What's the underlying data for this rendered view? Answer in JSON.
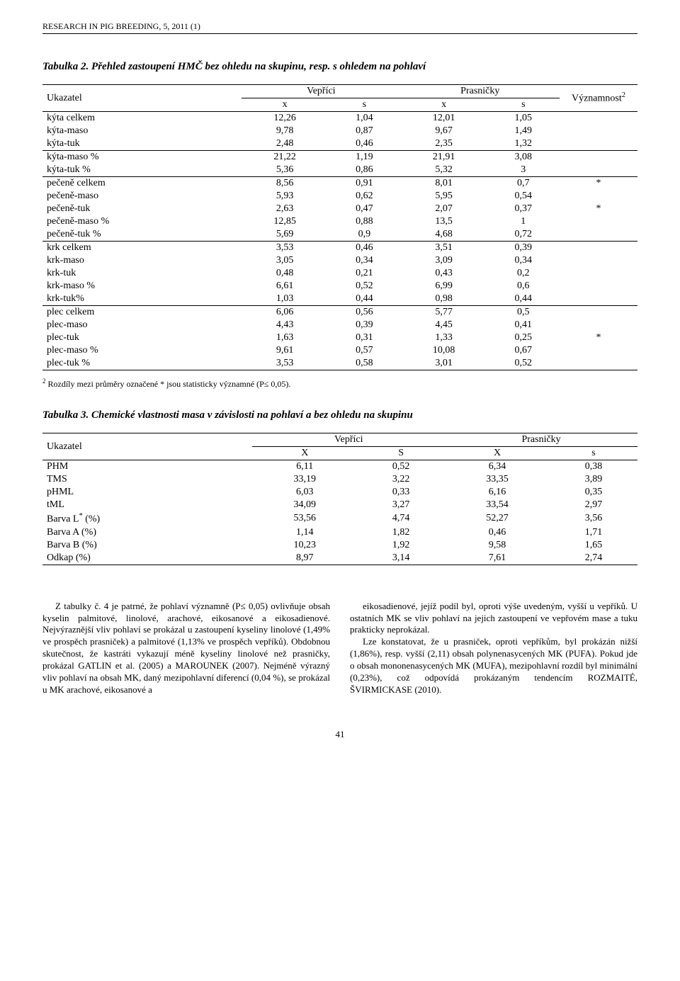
{
  "runningHead": "RESEARCH IN PIG BREEDING, 5, 2011 (1)",
  "table2": {
    "caption": "Tabulka 2. Přehled zastoupení HMČ bez ohledu na skupinu, resp. s ohledem na pohlaví",
    "header": {
      "ukazatel": "Ukazatel",
      "vepr": "Vepříci",
      "pras": "Prasničky",
      "sig": "Významnost",
      "sigSup": "2",
      "x": "x",
      "s": "s"
    },
    "sections": [
      {
        "rows": [
          {
            "label": "kýta celkem",
            "vx": "12,26",
            "vs": "1,04",
            "px": "12,01",
            "ps": "1,05",
            "sig": ""
          },
          {
            "label": "kýta-maso",
            "vx": "9,78",
            "vs": "0,87",
            "px": "9,67",
            "ps": "1,49",
            "sig": ""
          },
          {
            "label": "kýta-tuk",
            "vx": "2,48",
            "vs": "0,46",
            "px": "2,35",
            "ps": "1,32",
            "sig": ""
          }
        ]
      },
      {
        "rows": [
          {
            "label": "kýta-maso %",
            "vx": "21,22",
            "vs": "1,19",
            "px": "21,91",
            "ps": "3,08",
            "sig": ""
          },
          {
            "label": "kýta-tuk %",
            "vx": "5,36",
            "vs": "0,86",
            "px": "5,32",
            "ps": "3",
            "sig": ""
          }
        ]
      },
      {
        "rows": [
          {
            "label": "pečeně celkem",
            "vx": "8,56",
            "vs": "0,91",
            "px": "8,01",
            "ps": "0,7",
            "sig": "*"
          },
          {
            "label": "pečeně-maso",
            "vx": "5,93",
            "vs": "0,62",
            "px": "5,95",
            "ps": "0,54",
            "sig": ""
          },
          {
            "label": "pečeně-tuk",
            "vx": "2,63",
            "vs": "0,47",
            "px": "2,07",
            "ps": "0,37",
            "sig": "*"
          },
          {
            "label": "pečeně-maso %",
            "vx": "12,85",
            "vs": "0,88",
            "px": "13,5",
            "ps": "1",
            "sig": ""
          },
          {
            "label": "pečeně-tuk %",
            "vx": "5,69",
            "vs": "0,9",
            "px": "4,68",
            "ps": "0,72",
            "sig": ""
          }
        ]
      },
      {
        "rows": [
          {
            "label": "krk celkem",
            "vx": "3,53",
            "vs": "0,46",
            "px": "3,51",
            "ps": "0,39",
            "sig": ""
          },
          {
            "label": "krk-maso",
            "vx": "3,05",
            "vs": "0,34",
            "px": "3,09",
            "ps": "0,34",
            "sig": ""
          },
          {
            "label": "krk-tuk",
            "vx": "0,48",
            "vs": "0,21",
            "px": "0,43",
            "ps": "0,2",
            "sig": ""
          },
          {
            "label": "krk-maso %",
            "vx": "6,61",
            "vs": "0,52",
            "px": "6,99",
            "ps": "0,6",
            "sig": ""
          },
          {
            "label": "krk-tuk%",
            "vx": "1,03",
            "vs": "0,44",
            "px": "0,98",
            "ps": "0,44",
            "sig": ""
          }
        ]
      },
      {
        "rows": [
          {
            "label": "plec celkem",
            "vx": "6,06",
            "vs": "0,56",
            "px": "5,77",
            "ps": "0,5",
            "sig": ""
          },
          {
            "label": "plec-maso",
            "vx": "4,43",
            "vs": "0,39",
            "px": "4,45",
            "ps": "0,41",
            "sig": ""
          },
          {
            "label": "plec-tuk",
            "vx": "1,63",
            "vs": "0,31",
            "px": "1,33",
            "ps": "0,25",
            "sig": "*"
          },
          {
            "label": "plec-maso %",
            "vx": "9,61",
            "vs": "0,57",
            "px": "10,08",
            "ps": "0,67",
            "sig": ""
          },
          {
            "label": "plec-tuk %",
            "vx": "3,53",
            "vs": "0,58",
            "px": "3,01",
            "ps": "0,52",
            "sig": ""
          }
        ]
      }
    ],
    "footnoteSup": "2",
    "footnote": " Rozdíly mezi průměry označené * jsou statisticky významné (P≤ 0,05)."
  },
  "table3": {
    "caption": "Tabulka 3. Chemické vlastnosti masa v závislosti na pohlaví a bez ohledu na skupinu",
    "header": {
      "ukazatel": "Ukazatel",
      "vepr": "Vepříci",
      "pras": "Prasničky",
      "X": "X",
      "S": "S",
      "s": "s"
    },
    "rows": [
      {
        "label": "PHM",
        "sup": "",
        "vx": "6,11",
        "vs": "0,52",
        "px": "6,34",
        "ps": "0,38"
      },
      {
        "label": "TMS",
        "sup": "",
        "vx": "33,19",
        "vs": "3,22",
        "px": "33,35",
        "ps": "3,89"
      },
      {
        "label": "pHML",
        "sup": "",
        "vx": "6,03",
        "vs": "0,33",
        "px": "6,16",
        "ps": "0,35"
      },
      {
        "label": "tML",
        "sup": "",
        "vx": "34,09",
        "vs": "3,27",
        "px": "33,54",
        "ps": "2,97"
      },
      {
        "label": "Barva L",
        "sup": "*",
        "suffix": " (%)",
        "vx": "53,56",
        "vs": "4,74",
        "px": "52,27",
        "ps": "3,56"
      },
      {
        "label": "Barva A (%)",
        "sup": "",
        "vx": "1,14",
        "vs": "1,82",
        "px": "0,46",
        "ps": "1,71"
      },
      {
        "label": "Barva B (%)",
        "sup": "",
        "vx": "10,23",
        "vs": "1,92",
        "px": "9,58",
        "ps": "1,65"
      },
      {
        "label": "Odkap (%)",
        "sup": "",
        "vx": "8,97",
        "vs": "3,14",
        "px": "7,61",
        "ps": "2,74"
      }
    ]
  },
  "bodyText": {
    "colLeft": "Z tabulky č. 4 je patrné, že pohlaví významně (P≤ 0,05) ovlivňuje obsah kyselin palmitové, linolové, arachové, eikosanové a eikosadienové. Nejvýraznější vliv pohlaví se prokázal u zastoupení kyseliny linolové (1,49% ve prospěch prasniček) a palmitové (1,13% ve prospěch vepříků). Obdobnou skutečnost, že kastráti vykazují méně kyseliny linolové než prasničky, prokázal GATLIN et al. (2005) a MAROUNEK (2007). Nejméně výrazný vliv pohlaví na obsah MK, daný mezipohlavní diferencí (0,04 %), se prokázal u MK arachové, eikosanové a",
    "colRightP1": "eikosadienové, jejíž podíl byl, oproti výše uvedeným, vyšší u vepříků. U ostatních MK se vliv pohlaví na jejich zastoupení ve vepřovém mase a tuku prakticky neprokázal.",
    "colRightP2": "Lze konstatovat, že u prasniček, oproti vepříkům, byl prokázán nižší (1,86%), resp. vyšší (2,11) obsah polynenasycených MK (PUFA). Pokud jde o obsah mononenasycených MK (MUFA), mezipohlavní rozdíl byl minimální (0,23%), což odpovídá prokázaným tendencím ROZMAITÉ, ŠVIRMICKASE (2010)."
  },
  "pageNumber": "41",
  "styling": {
    "bodyFont": "Times New Roman",
    "bodyFontSizePx": 14,
    "captionFontSizePx": 15,
    "footnoteFontSizePx": 12,
    "runningFontSizePx": 12,
    "twoColFontSizePx": 13,
    "twoColGapPx": 28,
    "textColor": "#000000",
    "backgroundColor": "#ffffff",
    "pageWidthPx": 960,
    "pageHeightPx": 1385,
    "ruleColor": "#000000"
  }
}
